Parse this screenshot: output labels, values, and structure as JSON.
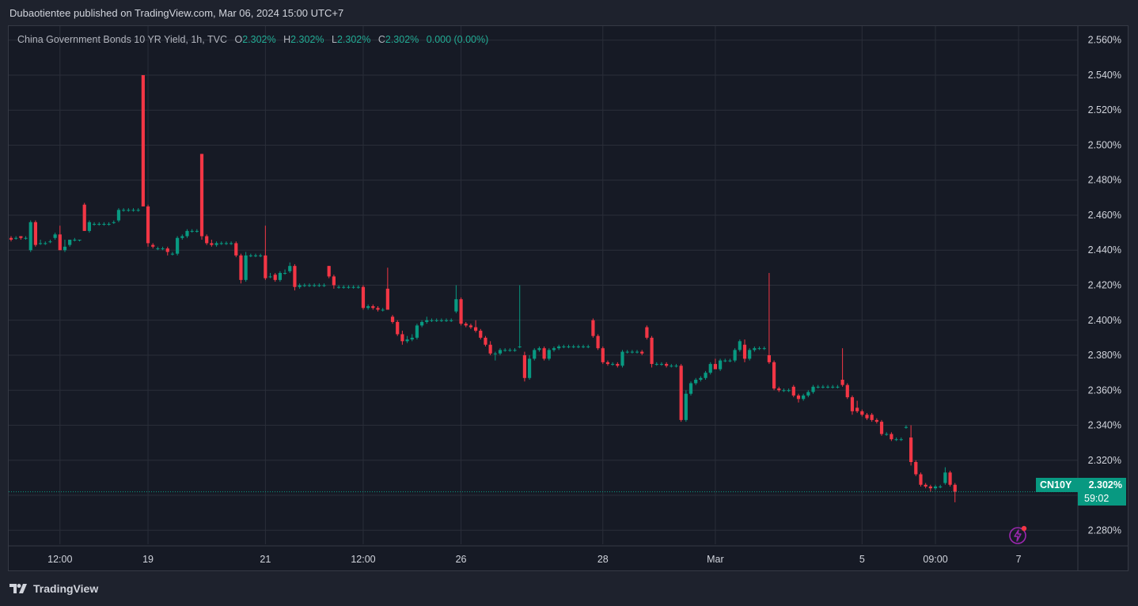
{
  "header": {
    "publish_line": "Dubaotientee published on TradingView.com, Mar 06, 2024 15:00 UTC+7"
  },
  "legend": {
    "symbol_line": "China Government Bonds 10 YR Yield, 1h, TVC",
    "o_label": "O",
    "o_value": "2.302%",
    "h_label": "H",
    "h_value": "2.302%",
    "l_label": "L",
    "l_value": "2.302%",
    "c_label": "C",
    "c_value": "2.302%",
    "change": "0.000 (0.00%)"
  },
  "price_tag": {
    "ticker": "CN10Y",
    "price": "2.302%",
    "countdown": "59:02"
  },
  "footer": {
    "brand": "TradingView"
  },
  "colors": {
    "up": "#089981",
    "down": "#f23645",
    "background": "#161a25",
    "grid": "#2a2e39",
    "axis_text": "#d1d4dc"
  },
  "chart_data": {
    "type": "candlestick",
    "title": "China Government Bonds 10 YR Yield, 1h, TVC",
    "ylim": [
      2.272,
      2.568
    ],
    "y_ticks": [
      "2.560%",
      "2.540%",
      "2.520%",
      "2.500%",
      "2.480%",
      "2.460%",
      "2.440%",
      "2.420%",
      "2.400%",
      "2.380%",
      "2.360%",
      "2.340%",
      "2.320%",
      "2.300%",
      "2.280%"
    ],
    "y_tick_values": [
      2.56,
      2.54,
      2.52,
      2.5,
      2.48,
      2.46,
      2.44,
      2.42,
      2.4,
      2.38,
      2.36,
      2.34,
      2.32,
      2.3,
      2.28
    ],
    "x_ticks": [
      {
        "label": "12:00",
        "bar": 10
      },
      {
        "label": "19",
        "bar": 28
      },
      {
        "label": "21",
        "bar": 52
      },
      {
        "label": "12:00",
        "bar": 72
      },
      {
        "label": "26",
        "bar": 92
      },
      {
        "label": "28",
        "bar": 121
      },
      {
        "label": "Mar",
        "bar": 144
      },
      {
        "label": "5",
        "bar": 174
      },
      {
        "label": "09:00",
        "bar": 189
      },
      {
        "label": "7",
        "bar": 206
      }
    ],
    "last_price": 2.302,
    "candles": [
      [
        2.447,
        2.448,
        2.445,
        2.446
      ],
      [
        2.447,
        2.448,
        2.446,
        2.447
      ],
      [
        2.448,
        2.448,
        2.446,
        2.447
      ],
      [
        2.447,
        2.448,
        2.446,
        2.447
      ],
      [
        2.44,
        2.457,
        2.439,
        2.456
      ],
      [
        2.456,
        2.457,
        2.442,
        2.443
      ],
      [
        2.444,
        2.446,
        2.443,
        2.444
      ],
      [
        2.444,
        2.445,
        2.443,
        2.444
      ],
      [
        2.445,
        2.446,
        2.444,
        2.445
      ],
      [
        2.447,
        2.45,
        2.446,
        2.449
      ],
      [
        2.449,
        2.454,
        2.44,
        2.44
      ],
      [
        2.44,
        2.446,
        2.439,
        2.442
      ],
      [
        2.443,
        2.446,
        2.442,
        2.446
      ],
      [
        2.446,
        2.447,
        2.445,
        2.446
      ],
      [
        2.446,
        2.446,
        2.445,
        2.446
      ],
      [
        2.466,
        2.467,
        2.451,
        2.451
      ],
      [
        2.451,
        2.457,
        2.45,
        2.456
      ],
      [
        2.455,
        2.456,
        2.454,
        2.455
      ],
      [
        2.455,
        2.456,
        2.454,
        2.455
      ],
      [
        2.455,
        2.456,
        2.454,
        2.455
      ],
      [
        2.455,
        2.456,
        2.454,
        2.455
      ],
      [
        2.456,
        2.457,
        2.455,
        2.456
      ],
      [
        2.457,
        2.464,
        2.456,
        2.463
      ],
      [
        2.463,
        2.464,
        2.462,
        2.463
      ],
      [
        2.463,
        2.464,
        2.462,
        2.463
      ],
      [
        2.463,
        2.464,
        2.462,
        2.463
      ],
      [
        2.463,
        2.464,
        2.462,
        2.463
      ],
      [
        2.54,
        2.54,
        2.465,
        2.465
      ],
      [
        2.465,
        2.466,
        2.442,
        2.444
      ],
      [
        2.443,
        2.444,
        2.441,
        2.442
      ],
      [
        2.441,
        2.442,
        2.44,
        2.441
      ],
      [
        2.441,
        2.442,
        2.44,
        2.441
      ],
      [
        2.441,
        2.442,
        2.437,
        2.439
      ],
      [
        2.438,
        2.439,
        2.437,
        2.438
      ],
      [
        2.438,
        2.448,
        2.437,
        2.447
      ],
      [
        2.447,
        2.449,
        2.446,
        2.448
      ],
      [
        2.448,
        2.452,
        2.447,
        2.451
      ],
      [
        2.451,
        2.452,
        2.45,
        2.451
      ],
      [
        2.451,
        2.452,
        2.45,
        2.451
      ],
      [
        2.495,
        2.495,
        2.446,
        2.448
      ],
      [
        2.448,
        2.449,
        2.443,
        2.444
      ],
      [
        2.444,
        2.446,
        2.442,
        2.443
      ],
      [
        2.443,
        2.445,
        2.442,
        2.444
      ],
      [
        2.444,
        2.445,
        2.443,
        2.444
      ],
      [
        2.444,
        2.445,
        2.443,
        2.444
      ],
      [
        2.444,
        2.445,
        2.443,
        2.444
      ],
      [
        2.444,
        2.445,
        2.436,
        2.437
      ],
      [
        2.437,
        2.438,
        2.421,
        2.423
      ],
      [
        2.423,
        2.439,
        2.422,
        2.437
      ],
      [
        2.437,
        2.438,
        2.436,
        2.437
      ],
      [
        2.437,
        2.438,
        2.436,
        2.437
      ],
      [
        2.437,
        2.438,
        2.436,
        2.437
      ],
      [
        2.437,
        2.454,
        2.423,
        2.424
      ],
      [
        2.425,
        2.427,
        2.424,
        2.425
      ],
      [
        2.426,
        2.427,
        2.422,
        2.423
      ],
      [
        2.423,
        2.428,
        2.422,
        2.427
      ],
      [
        2.427,
        2.429,
        2.426,
        2.427
      ],
      [
        2.428,
        2.433,
        2.427,
        2.431
      ],
      [
        2.431,
        2.432,
        2.417,
        2.419
      ],
      [
        2.419,
        2.421,
        2.418,
        2.42
      ],
      [
        2.42,
        2.421,
        2.419,
        2.42
      ],
      [
        2.42,
        2.421,
        2.419,
        2.42
      ],
      [
        2.42,
        2.421,
        2.419,
        2.42
      ],
      [
        2.42,
        2.421,
        2.419,
        2.42
      ],
      [
        2.42,
        2.421,
        2.419,
        2.42
      ],
      [
        2.431,
        2.431,
        2.424,
        2.425
      ],
      [
        2.425,
        2.426,
        2.418,
        2.42
      ],
      [
        2.419,
        2.42,
        2.418,
        2.419
      ],
      [
        2.419,
        2.42,
        2.418,
        2.419
      ],
      [
        2.419,
        2.42,
        2.418,
        2.419
      ],
      [
        2.419,
        2.42,
        2.418,
        2.419
      ],
      [
        2.419,
        2.42,
        2.418,
        2.419
      ],
      [
        2.419,
        2.42,
        2.406,
        2.407
      ],
      [
        2.407,
        2.409,
        2.406,
        2.408
      ],
      [
        2.408,
        2.409,
        2.406,
        2.407
      ],
      [
        2.407,
        2.408,
        2.405,
        2.406
      ],
      [
        2.406,
        2.407,
        2.405,
        2.406
      ],
      [
        2.418,
        2.43,
        2.406,
        2.406
      ],
      [
        2.402,
        2.403,
        2.398,
        2.399
      ],
      [
        2.399,
        2.4,
        2.391,
        2.392
      ],
      [
        2.392,
        2.394,
        2.386,
        2.388
      ],
      [
        2.388,
        2.391,
        2.387,
        2.389
      ],
      [
        2.389,
        2.392,
        2.388,
        2.39
      ],
      [
        2.39,
        2.398,
        2.389,
        2.397
      ],
      [
        2.397,
        2.4,
        2.396,
        2.399
      ],
      [
        2.399,
        2.402,
        2.398,
        2.4
      ],
      [
        2.4,
        2.401,
        2.399,
        2.4
      ],
      [
        2.4,
        2.401,
        2.399,
        2.4
      ],
      [
        2.4,
        2.401,
        2.399,
        2.4
      ],
      [
        2.4,
        2.401,
        2.399,
        2.4
      ],
      [
        2.4,
        2.401,
        2.399,
        2.4
      ],
      [
        2.405,
        2.42,
        2.404,
        2.412
      ],
      [
        2.412,
        2.413,
        2.397,
        2.398
      ],
      [
        2.398,
        2.399,
        2.396,
        2.397
      ],
      [
        2.397,
        2.398,
        2.395,
        2.396
      ],
      [
        2.396,
        2.4,
        2.393,
        2.394
      ],
      [
        2.394,
        2.395,
        2.389,
        2.39
      ],
      [
        2.39,
        2.391,
        2.385,
        2.386
      ],
      [
        2.386,
        2.388,
        2.38,
        2.381
      ],
      [
        2.381,
        2.382,
        2.377,
        2.381
      ],
      [
        2.381,
        2.384,
        2.38,
        2.383
      ],
      [
        2.383,
        2.384,
        2.382,
        2.383
      ],
      [
        2.383,
        2.384,
        2.382,
        2.383
      ],
      [
        2.383,
        2.384,
        2.382,
        2.383
      ],
      [
        2.385,
        2.42,
        2.384,
        2.385
      ],
      [
        2.38,
        2.382,
        2.365,
        2.367
      ],
      [
        2.367,
        2.38,
        2.366,
        2.378
      ],
      [
        2.378,
        2.384,
        2.377,
        2.383
      ],
      [
        2.383,
        2.385,
        2.382,
        2.384
      ],
      [
        2.384,
        2.385,
        2.377,
        2.378
      ],
      [
        2.378,
        2.384,
        2.377,
        2.383
      ],
      [
        2.383,
        2.385,
        2.382,
        2.384
      ],
      [
        2.384,
        2.386,
        2.383,
        2.385
      ],
      [
        2.385,
        2.386,
        2.384,
        2.385
      ],
      [
        2.385,
        2.386,
        2.384,
        2.385
      ],
      [
        2.385,
        2.386,
        2.384,
        2.385
      ],
      [
        2.385,
        2.386,
        2.384,
        2.385
      ],
      [
        2.385,
        2.386,
        2.384,
        2.385
      ],
      [
        2.385,
        2.386,
        2.384,
        2.385
      ],
      [
        2.4,
        2.401,
        2.39,
        2.391
      ],
      [
        2.391,
        2.392,
        2.383,
        2.384
      ],
      [
        2.384,
        2.385,
        2.375,
        2.376
      ],
      [
        2.376,
        2.377,
        2.374,
        2.375
      ],
      [
        2.375,
        2.376,
        2.374,
        2.375
      ],
      [
        2.375,
        2.376,
        2.373,
        2.374
      ],
      [
        2.374,
        2.383,
        2.373,
        2.382
      ],
      [
        2.382,
        2.383,
        2.381,
        2.382
      ],
      [
        2.382,
        2.383,
        2.381,
        2.382
      ],
      [
        2.382,
        2.383,
        2.381,
        2.382
      ],
      [
        2.382,
        2.383,
        2.38,
        2.381
      ],
      [
        2.396,
        2.397,
        2.389,
        2.39
      ],
      [
        2.39,
        2.391,
        2.373,
        2.375
      ],
      [
        2.375,
        2.376,
        2.374,
        2.375
      ],
      [
        2.375,
        2.376,
        2.374,
        2.375
      ],
      [
        2.375,
        2.376,
        2.373,
        2.374
      ],
      [
        2.374,
        2.375,
        2.373,
        2.374
      ],
      [
        2.374,
        2.375,
        2.373,
        2.374
      ],
      [
        2.374,
        2.375,
        2.342,
        2.343
      ],
      [
        2.343,
        2.36,
        2.342,
        2.358
      ],
      [
        2.358,
        2.365,
        2.357,
        2.364
      ],
      [
        2.364,
        2.367,
        2.363,
        2.366
      ],
      [
        2.366,
        2.368,
        2.365,
        2.367
      ],
      [
        2.367,
        2.371,
        2.366,
        2.37
      ],
      [
        2.37,
        2.376,
        2.369,
        2.375
      ],
      [
        2.375,
        2.378,
        2.374,
        2.372
      ],
      [
        2.372,
        2.378,
        2.371,
        2.377
      ],
      [
        2.377,
        2.378,
        2.376,
        2.377
      ],
      [
        2.377,
        2.378,
        2.376,
        2.377
      ],
      [
        2.377,
        2.384,
        2.376,
        2.383
      ],
      [
        2.383,
        2.389,
        2.382,
        2.388
      ],
      [
        2.386,
        2.389,
        2.376,
        2.378
      ],
      [
        2.378,
        2.384,
        2.377,
        2.383
      ],
      [
        2.383,
        2.385,
        2.382,
        2.384
      ],
      [
        2.384,
        2.385,
        2.383,
        2.384
      ],
      [
        2.384,
        2.385,
        2.383,
        2.384
      ],
      [
        2.38,
        2.427,
        2.375,
        2.376
      ],
      [
        2.376,
        2.377,
        2.36,
        2.361
      ],
      [
        2.361,
        2.362,
        2.359,
        2.36
      ],
      [
        2.36,
        2.361,
        2.359,
        2.36
      ],
      [
        2.36,
        2.361,
        2.359,
        2.36
      ],
      [
        2.362,
        2.363,
        2.356,
        2.357
      ],
      [
        2.357,
        2.358,
        2.353,
        2.355
      ],
      [
        2.355,
        2.358,
        2.354,
        2.357
      ],
      [
        2.357,
        2.36,
        2.356,
        2.359
      ],
      [
        2.359,
        2.363,
        2.358,
        2.362
      ],
      [
        2.362,
        2.363,
        2.361,
        2.362
      ],
      [
        2.362,
        2.363,
        2.361,
        2.362
      ],
      [
        2.362,
        2.363,
        2.361,
        2.362
      ],
      [
        2.362,
        2.363,
        2.361,
        2.362
      ],
      [
        2.362,
        2.363,
        2.361,
        2.362
      ],
      [
        2.366,
        2.384,
        2.362,
        2.363
      ],
      [
        2.363,
        2.364,
        2.355,
        2.356
      ],
      [
        2.356,
        2.357,
        2.346,
        2.348
      ],
      [
        2.35,
        2.354,
        2.347,
        2.348
      ],
      [
        2.348,
        2.349,
        2.345,
        2.346
      ],
      [
        2.346,
        2.347,
        2.343,
        2.344
      ],
      [
        2.346,
        2.347,
        2.342,
        2.343
      ],
      [
        2.343,
        2.344,
        2.341,
        2.342
      ],
      [
        2.342,
        2.343,
        2.334,
        2.335
      ],
      [
        2.335,
        2.336,
        2.334,
        2.335
      ],
      [
        2.335,
        2.336,
        2.331,
        2.332
      ],
      [
        2.332,
        2.333,
        2.331,
        2.332
      ],
      [
        2.332,
        2.333,
        2.331,
        2.332
      ],
      [
        2.339,
        2.34,
        2.338,
        2.339
      ],
      [
        2.333,
        2.34,
        2.317,
        2.319
      ],
      [
        2.319,
        2.32,
        2.311,
        2.312
      ],
      [
        2.312,
        2.313,
        2.305,
        2.306
      ],
      [
        2.306,
        2.307,
        2.304,
        2.305
      ],
      [
        2.305,
        2.306,
        2.302,
        2.304
      ],
      [
        2.304,
        2.306,
        2.303,
        2.305
      ],
      [
        2.305,
        2.306,
        2.304,
        2.305
      ],
      [
        2.307,
        2.316,
        2.306,
        2.313
      ],
      [
        2.313,
        2.314,
        2.305,
        2.306
      ],
      [
        2.306,
        2.307,
        2.296,
        2.302
      ]
    ]
  }
}
